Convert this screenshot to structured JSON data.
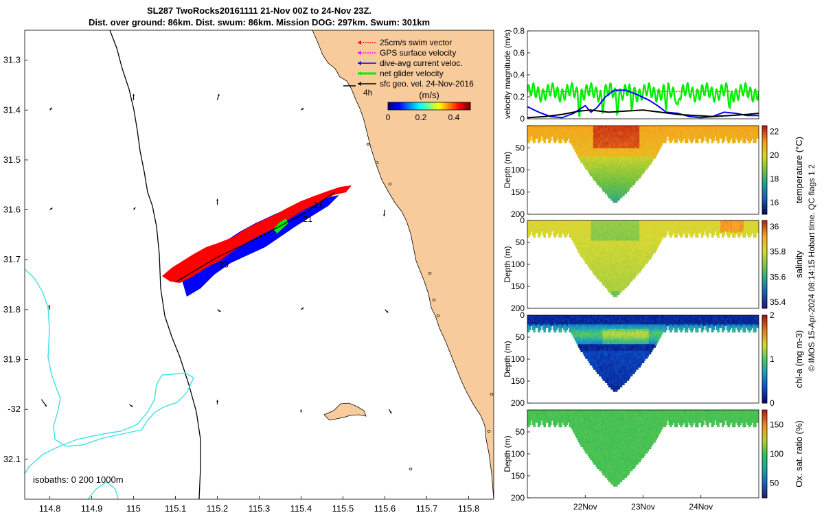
{
  "title": {
    "line1": "SL287 TwoRocks20161111 21-Nov 00Z to 24-Nov 23Z.",
    "line2": "Dist. over ground: 86km. Dist. swum: 86km. Mission DOG: 297km. Swum: 301km"
  },
  "colors": {
    "land": "#f8cb9c",
    "isobath_200": "#000000",
    "isobath_1000": "#3fe0e6",
    "swim": "#ff0000",
    "gps": "#ff00ff",
    "current": "#0000ff",
    "net": "#00ee00",
    "geo": "#000000"
  },
  "chart_data": [
    {
      "id": "map",
      "type": "map",
      "xlabel": "Longitude",
      "ylabel": "Latitude",
      "xlim": [
        114.74,
        115.86
      ],
      "ylim": [
        -32.18,
        -31.24
      ],
      "xticks": [
        114.8,
        114.9,
        115.0,
        115.1,
        115.2,
        115.3,
        115.4,
        115.5,
        115.6,
        115.7,
        115.8
      ],
      "xtick_labels": [
        "114.8",
        "114.9",
        "115",
        "115.1",
        "115.2",
        "115.3",
        "115.4",
        "115.5",
        "115.6",
        "115.7",
        "115.8"
      ],
      "yticks": [
        -31.3,
        -31.4,
        -31.5,
        -31.6,
        -31.7,
        -31.8,
        -31.9,
        -32.0,
        -32.1
      ],
      "ytick_labels": [
        "31.3",
        "31.4",
        "31.5",
        "31.6",
        "31.7",
        "31.8",
        "31.9",
        "-32",
        "32.1"
      ],
      "legend": [
        {
          "label": "25cm/s swim vector",
          "color": "#ff0000"
        },
        {
          "label": "GPS surface velocity",
          "color": "#ff00ff"
        },
        {
          "label": "dive-avg current veloc.",
          "color": "#0000ff"
        },
        {
          "label": "net glider velocity",
          "color": "#00ee00"
        },
        {
          "label": "sfc geo. vel. 24-Nov-2016",
          "color": "#000000"
        }
      ],
      "scale_label": "4h",
      "colorbar": {
        "title": "(m/s)",
        "ticks": [
          0,
          0.2,
          0.4
        ],
        "tick_labels": [
          "0",
          "0.2",
          "0.4"
        ],
        "range": [
          0,
          0.5
        ]
      },
      "track": [
        [
          115.1,
          -31.745
        ],
        [
          115.2,
          -31.695
        ],
        [
          115.3,
          -31.655
        ],
        [
          115.4,
          -31.61
        ],
        [
          115.48,
          -31.565
        ]
      ],
      "day_labels": [
        {
          "text": "23",
          "lon": 115.205,
          "lat": -31.702
        },
        {
          "text": "21",
          "lon": 115.405,
          "lat": -31.61
        },
        {
          "text": "21",
          "lon": 115.43,
          "lat": -31.583
        }
      ],
      "isobath_label": "isobaths: 0   200  1000m",
      "geo_vectors": [
        [
          114.8,
          -31.4,
          0.005,
          0.005
        ],
        [
          115.0,
          -31.38,
          0.0,
          0.012
        ],
        [
          115.2,
          -31.38,
          0.004,
          0.012
        ],
        [
          115.4,
          -31.4,
          0.006,
          0.004
        ],
        [
          114.8,
          -31.6,
          0.006,
          0.004
        ],
        [
          115.0,
          -31.6,
          0.004,
          0.005
        ],
        [
          115.2,
          -31.59,
          0.0,
          0.012
        ],
        [
          115.6,
          -31.6,
          -0.002,
          -0.013
        ],
        [
          114.8,
          -31.8,
          -0.002,
          0.009
        ],
        [
          115.2,
          -31.8,
          0.008,
          -0.004
        ],
        [
          115.4,
          -31.8,
          0.006,
          0.004
        ],
        [
          115.6,
          -31.8,
          0.008,
          -0.006
        ],
        [
          114.78,
          -31.98,
          0.012,
          -0.014
        ],
        [
          114.99,
          -31.99,
          0.008,
          -0.005
        ],
        [
          115.2,
          -31.99,
          0.0,
          0.009
        ],
        [
          115.4,
          -32.0,
          0.0,
          -0.006
        ],
        [
          115.61,
          -32.0,
          0.006,
          -0.008
        ]
      ]
    },
    {
      "id": "velocity",
      "type": "line",
      "ylabel": "velocity magnitude (m/s)",
      "ylim": [
        0,
        0.8
      ],
      "yticks": [
        0,
        0.2,
        0.4,
        0.6,
        0.8
      ],
      "ytick_labels": [
        "0",
        "0.2",
        "0.4",
        "0.6",
        "0.8"
      ],
      "xlim": [
        21.0,
        25.0
      ],
      "series": [
        {
          "name": "25cm/s swim vector",
          "color": "#ff0000",
          "style": "dashed",
          "base": 0.25,
          "amp": 0.005,
          "noise": 0.008
        },
        {
          "name": "net glider velocity",
          "color": "#00ee00",
          "base": 0.24,
          "amp": 0.07,
          "dips": [
            21.9,
            22.3,
            22.55,
            22.8,
            23.4,
            23.6,
            24.5
          ]
        },
        {
          "name": "dive-avg current veloc.",
          "color": "#0000ff",
          "points": [
            [
              21.0,
              0.11
            ],
            [
              21.2,
              0.06
            ],
            [
              21.4,
              0.02
            ],
            [
              21.6,
              0.01
            ],
            [
              21.8,
              0.05
            ],
            [
              22.0,
              0.12
            ],
            [
              22.1,
              0.06
            ],
            [
              22.2,
              0.1
            ],
            [
              22.35,
              0.2
            ],
            [
              22.5,
              0.26
            ],
            [
              22.7,
              0.26
            ],
            [
              22.9,
              0.22
            ],
            [
              23.1,
              0.17
            ],
            [
              23.25,
              0.12
            ],
            [
              23.4,
              0.06
            ],
            [
              23.6,
              0.05
            ],
            [
              23.8,
              0.02
            ],
            [
              24.0,
              0.01
            ],
            [
              24.2,
              0.02
            ],
            [
              24.4,
              0.06
            ],
            [
              24.6,
              0.05
            ],
            [
              24.8,
              0.03
            ],
            [
              25.0,
              0.03
            ]
          ]
        },
        {
          "name": "sfc geo. vel. 24-Nov-2016",
          "color": "#000000",
          "points": [
            [
              21.0,
              0.01
            ],
            [
              21.3,
              0.02
            ],
            [
              21.6,
              0.04
            ],
            [
              21.9,
              0.07
            ],
            [
              22.1,
              0.08
            ],
            [
              22.4,
              0.06
            ],
            [
              22.7,
              0.07
            ],
            [
              23.0,
              0.08
            ],
            [
              23.3,
              0.06
            ],
            [
              23.6,
              0.04
            ],
            [
              23.9,
              0.03
            ],
            [
              24.2,
              0.02
            ],
            [
              24.5,
              0.03
            ],
            [
              24.8,
              0.04
            ],
            [
              25.0,
              0.05
            ]
          ]
        }
      ]
    },
    {
      "id": "temperature",
      "type": "heatmap",
      "ylabel": "Depth (m)",
      "cbar_label": "temperature (°C)",
      "ylim": [
        0,
        200
      ],
      "yticks": [
        0,
        50,
        100,
        150,
        200
      ],
      "ytick_labels": [
        "",
        "50",
        "100",
        "150",
        "200"
      ],
      "crange": [
        15.0,
        22.5
      ],
      "cticks": [
        16,
        18,
        20,
        22
      ],
      "ctick_labels": [
        "16",
        "18",
        "20",
        "22"
      ],
      "surface_value": 21.0,
      "deep_value": 16.8
    },
    {
      "id": "salinity",
      "type": "heatmap",
      "ylabel": "Depth (m)",
      "cbar_label": "salinity",
      "ylim": [
        0,
        200
      ],
      "yticks": [
        0,
        50,
        100,
        150,
        200
      ],
      "ytick_labels": [
        "0",
        "50",
        "100",
        "150",
        "200"
      ],
      "crange": [
        35.35,
        36.05
      ],
      "cticks": [
        35.4,
        35.6,
        35.8,
        36.0
      ],
      "ctick_labels": [
        "35.4",
        "35.6",
        "35.8",
        "36"
      ],
      "surface_value": 35.83,
      "deep_value": 35.78
    },
    {
      "id": "chla",
      "type": "heatmap",
      "ylabel": "Depth (m)",
      "cbar_label": "chl-a (mg m-3)",
      "ylim": [
        0,
        200
      ],
      "yticks": [
        0,
        50,
        100,
        150,
        200
      ],
      "ytick_labels": [
        "0",
        "50",
        "100",
        "150",
        "200"
      ],
      "crange": [
        0,
        2
      ],
      "cticks": [
        0,
        1,
        2
      ],
      "ctick_labels": [
        "0",
        "1",
        "2"
      ],
      "surface_value": 0.15,
      "deep_value": 0.05
    },
    {
      "id": "oxygen",
      "type": "heatmap",
      "ylabel": "Depth (m)",
      "cbar_label": "Ox. sat. ratio (%)",
      "ylim": [
        0,
        200
      ],
      "yticks": [
        50,
        100,
        150,
        200
      ],
      "ytick_labels": [
        "50",
        "100",
        "150",
        "200"
      ],
      "crange": [
        25,
        175
      ],
      "cticks": [
        50,
        100,
        150
      ],
      "ctick_labels": [
        "50",
        "100",
        "150"
      ],
      "surface_value": 105,
      "deep_value": 104
    }
  ],
  "time_axis": {
    "xlim": [
      21.0,
      25.0
    ],
    "ticks": [
      22,
      23,
      24
    ],
    "labels": [
      "22Nov",
      "23Nov",
      "24Nov"
    ]
  },
  "side_note": "© IMOS 15-Apr-2024 08:14:15 Hobart time. QC flags 1  2"
}
